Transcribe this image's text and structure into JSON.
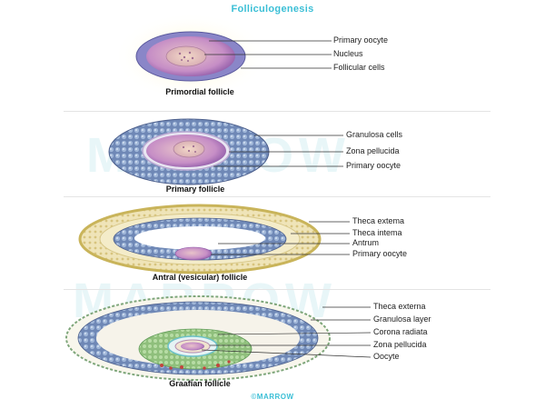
{
  "title": "Folliculogenesis",
  "watermark": "MARROW",
  "footer": "©MARROW",
  "colors": {
    "accent": "#3bbfd6",
    "granulosa": "#6d86b5",
    "oocyte": "#c98bc6",
    "theca": "#d9c472"
  },
  "stages": [
    {
      "caption": "Primordial follicle",
      "labels": [
        "Primary oocyte",
        "Nucleus",
        "Follicular cells"
      ]
    },
    {
      "caption": "Primary follicle",
      "labels": [
        "Granulosa cells",
        "Zona pellucida",
        "Primary oocyte"
      ]
    },
    {
      "caption": "Antral (vesicular) follicle",
      "labels": [
        "Theca extema",
        "Theca intema",
        "Antrum",
        "Primary oocyte"
      ]
    },
    {
      "caption": "Graafian follicle",
      "labels": [
        "Theca externa",
        "Granulosa layer",
        "Corona radiata",
        "Zona pellucida",
        "Oocyte"
      ]
    }
  ]
}
